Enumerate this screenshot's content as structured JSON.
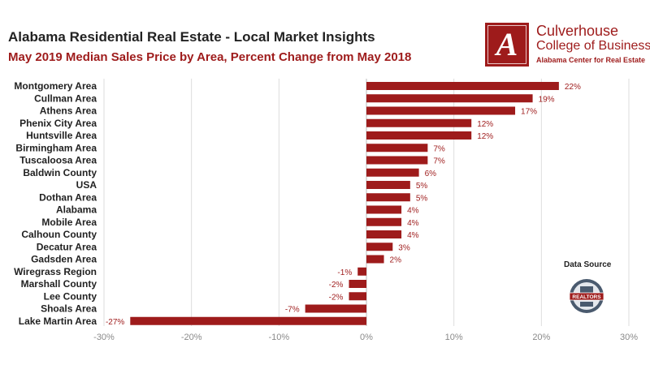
{
  "colors": {
    "bar": "#9e1b1b",
    "title": "#222222",
    "subtitle": "#9e1b1b",
    "grid": "#dddddd"
  },
  "logo": {
    "name_line1": "Culverhouse",
    "name_line2": "College of Business",
    "center": "Alabama Center for Real Estate",
    "monogram": "A"
  },
  "data_source": {
    "label": "Data Source",
    "badge_text": "REALTORS"
  },
  "chart_data": {
    "type": "bar",
    "orientation": "horizontal",
    "title": "Alabama Residential Real Estate - Local Market Insights",
    "subtitle": "May 2019 Median Sales Price by Area, Percent Change from May 2018",
    "categories": [
      "Montgomery Area",
      "Cullman Area",
      "Athens Area",
      "Phenix City Area",
      "Huntsville Area",
      "Birmingham Area",
      "Tuscaloosa Area",
      "Baldwin County",
      "USA",
      "Dothan Area",
      "Alabama",
      "Mobile Area",
      "Calhoun County",
      "Decatur Area",
      "Gadsden Area",
      "Wiregrass Region",
      "Marshall County",
      "Lee County",
      "Shoals Area",
      "Lake Martin Area"
    ],
    "values": [
      22,
      19,
      17,
      12,
      12,
      7,
      7,
      6,
      5,
      5,
      4,
      4,
      4,
      3,
      2,
      -1,
      -2,
      -2,
      -7,
      -27
    ],
    "data_labels": [
      "22%",
      "19%",
      "17%",
      "12%",
      "12%",
      "7%",
      "7%",
      "6%",
      "5%",
      "5%",
      "4%",
      "4%",
      "4%",
      "3%",
      "2%",
      "-1%",
      "-2%",
      "-2%",
      "-7%",
      "-27%"
    ],
    "xlim": [
      -30,
      30
    ],
    "xticks": [
      -30,
      -20,
      -10,
      0,
      10,
      20,
      30
    ],
    "xtick_labels": [
      "-30%",
      "-20%",
      "-10%",
      "0%",
      "10%",
      "20%",
      "30%"
    ],
    "grid": true,
    "legend": "none"
  }
}
